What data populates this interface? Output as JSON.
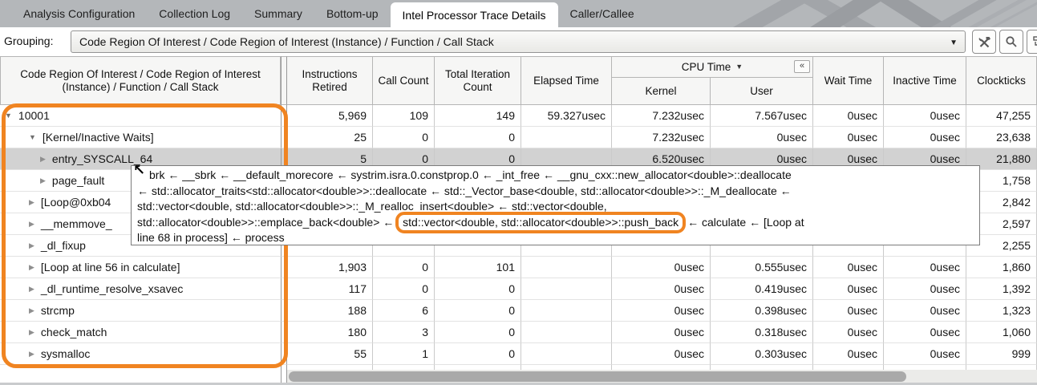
{
  "tabs": [
    {
      "label": "Analysis Configuration",
      "active": false
    },
    {
      "label": "Collection Log",
      "active": false
    },
    {
      "label": "Summary",
      "active": false
    },
    {
      "label": "Bottom-up",
      "active": false
    },
    {
      "label": "Intel Processor Trace Details",
      "active": true
    },
    {
      "label": "Caller/Callee",
      "active": false
    }
  ],
  "grouping": {
    "label": "Grouping:",
    "value": "Code Region Of Interest / Code Region of Interest (Instance) / Function / Call Stack",
    "buttons": [
      "customize-grouping",
      "search",
      "copy"
    ]
  },
  "icons": {
    "dropdown": "▼",
    "sort_desc": "▼",
    "collapse": "«",
    "expanded": "▼",
    "collapsed": "▶",
    "cursor": "↖"
  },
  "table": {
    "tree_header": "Code Region Of Interest / Code Region of Interest (Instance) / Function / Call Stack",
    "headers": {
      "instructions": "Instructions Retired",
      "call_count": "Call Count",
      "total_iteration": "Total Iteration Count",
      "elapsed": "Elapsed Time",
      "cpu_time": "CPU Time",
      "kernel": "Kernel",
      "user": "User",
      "wait": "Wait Time",
      "inactive": "Inactive Time",
      "clockticks": "Clockticks"
    },
    "rows": [
      {
        "label": "10001",
        "level": 0,
        "state": "expanded",
        "selected": false,
        "cells": [
          "5,969",
          "109",
          "149",
          "59.327usec",
          "7.232usec",
          "7.567usec",
          "0usec",
          "0usec",
          "47,255"
        ]
      },
      {
        "label": "[Kernel/Inactive Waits]",
        "level": 1,
        "state": "expanded",
        "selected": false,
        "cells": [
          "25",
          "0",
          "0",
          "",
          "7.232usec",
          "0usec",
          "0usec",
          "0usec",
          "23,638"
        ]
      },
      {
        "label": "entry_SYSCALL_64",
        "level": 2,
        "state": "collapsed",
        "selected": true,
        "cells": [
          "5",
          "0",
          "0",
          "",
          "6.520usec",
          "0usec",
          "0usec",
          "0usec",
          "21,880"
        ]
      },
      {
        "label": "page_fault",
        "level": 2,
        "state": "collapsed",
        "selected": false,
        "cells": [
          "",
          "",
          "",
          "",
          "",
          "",
          "",
          "",
          "1,758"
        ]
      },
      {
        "label": "[Loop@0xb04",
        "level": 1,
        "state": "collapsed",
        "selected": false,
        "cells": [
          "",
          "",
          "",
          "",
          "",
          "",
          "",
          "",
          "2,842"
        ]
      },
      {
        "label": "__memmove_",
        "level": 1,
        "state": "collapsed",
        "selected": false,
        "cells": [
          "",
          "",
          "",
          "",
          "",
          "",
          "",
          "",
          "2,597"
        ]
      },
      {
        "label": "_dl_fixup",
        "level": 1,
        "state": "collapsed",
        "selected": false,
        "cells": [
          "",
          "",
          "",
          "",
          "",
          "",
          "",
          "",
          "2,255"
        ]
      },
      {
        "label": "[Loop at line 56 in calculate]",
        "level": 1,
        "state": "collapsed",
        "selected": false,
        "cells": [
          "1,903",
          "0",
          "101",
          "",
          "0usec",
          "0.555usec",
          "0usec",
          "0usec",
          "1,860"
        ]
      },
      {
        "label": "_dl_runtime_resolve_xsavec",
        "level": 1,
        "state": "collapsed",
        "selected": false,
        "cells": [
          "117",
          "0",
          "0",
          "",
          "0usec",
          "0.419usec",
          "0usec",
          "0usec",
          "1,392"
        ]
      },
      {
        "label": "strcmp",
        "level": 1,
        "state": "collapsed",
        "selected": false,
        "cells": [
          "188",
          "6",
          "0",
          "",
          "0usec",
          "0.398usec",
          "0usec",
          "0usec",
          "1,323"
        ]
      },
      {
        "label": "check_match",
        "level": 1,
        "state": "collapsed",
        "selected": false,
        "cells": [
          "180",
          "3",
          "0",
          "",
          "0usec",
          "0.318usec",
          "0usec",
          "0usec",
          "1,060"
        ]
      },
      {
        "label": "sysmalloc",
        "level": 1,
        "state": "collapsed",
        "selected": false,
        "cells": [
          "55",
          "1",
          "0",
          "",
          "0usec",
          "0.303usec",
          "0usec",
          "0usec",
          "999"
        ]
      }
    ]
  },
  "tooltip": {
    "line1": "brk ← __sbrk ← __default_morecore ← systrim.isra.0.constprop.0 ← _int_free ← __gnu_cxx::new_allocator<double>::deallocate",
    "line2": "← std::allocator_traits<std::allocator<double>>::deallocate ← std::_Vector_base<double, std::allocator<double>>::_M_deallocate ←",
    "line3": "std::vector<double, std::allocator<double>>::_M_realloc_insert<double> ← std::vector<double,",
    "line4_pre": "std::allocator<double>>::emplace_back<double> ← ",
    "line4_highlight": "std::vector<double, std::allocator<double>>::push_back",
    "line4_post": " ← calculate ← [Loop at",
    "line5": "line 68 in process] ← process"
  },
  "annotation_color": "#f08421"
}
